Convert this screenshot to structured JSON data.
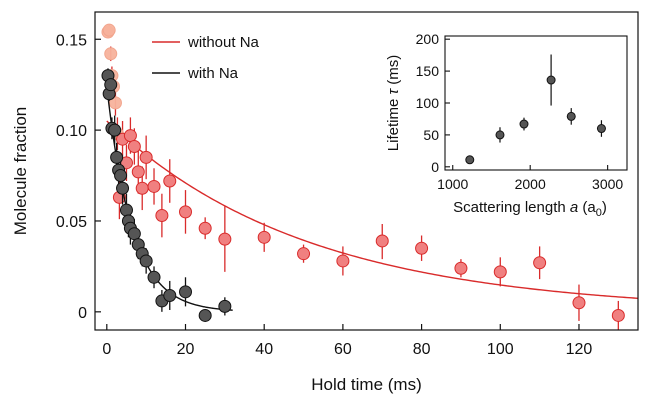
{
  "chart_data": [
    {
      "type": "scatter",
      "title": "",
      "xlabel": "Hold time (ms)",
      "ylabel": "Molecule fraction",
      "xlim": [
        -3,
        135
      ],
      "ylim": [
        -0.01,
        0.165
      ],
      "xticks": [
        0,
        20,
        40,
        60,
        80,
        100,
        120
      ],
      "yticks": [
        0,
        0.05,
        0.1,
        0.15
      ],
      "ytick_labels": [
        "0",
        "0.05",
        "0.10",
        "0.15"
      ],
      "grid": false,
      "legend": {
        "position": "top-left",
        "entries": [
          {
            "label": "without Na",
            "color": "#d92b2b"
          },
          {
            "label": "with Na",
            "color": "#111111"
          }
        ]
      },
      "series": [
        {
          "name": "without Na",
          "marker_color": "#f08080",
          "edge_color": "#d92b2b",
          "fit_color": "#d92b2b",
          "points": [
            [
              0.3,
              0.154,
              0.003
            ],
            [
              0.6,
              0.155,
              0.003
            ],
            [
              1.0,
              0.142,
              0.004
            ],
            [
              1.3,
              0.13,
              0.005
            ],
            [
              1.7,
              0.124,
              0.006
            ],
            [
              2.2,
              0.115,
              0.007
            ],
            [
              2.7,
              0.098,
              0.009
            ],
            [
              3.2,
              0.063,
              0.012
            ],
            [
              4.0,
              0.095,
              0.01
            ],
            [
              5.0,
              0.082,
              0.01
            ],
            [
              6.0,
              0.097,
              0.01
            ],
            [
              7.0,
              0.091,
              0.01
            ],
            [
              8.0,
              0.077,
              0.012
            ],
            [
              9.0,
              0.068,
              0.012
            ],
            [
              10.0,
              0.085,
              0.012
            ],
            [
              12.0,
              0.069,
              0.01
            ],
            [
              14.0,
              0.053,
              0.012
            ],
            [
              16.0,
              0.072,
              0.012
            ],
            [
              20.0,
              0.055,
              0.012
            ],
            [
              25.0,
              0.046,
              0.006
            ],
            [
              30.0,
              0.04,
              0.018
            ],
            [
              40.0,
              0.041,
              0.008
            ],
            [
              50.0,
              0.032,
              0.005
            ],
            [
              60.0,
              0.028,
              0.008
            ],
            [
              70.0,
              0.039,
              0.01
            ],
            [
              80.0,
              0.035,
              0.007
            ],
            [
              90.0,
              0.024,
              0.005
            ],
            [
              100.0,
              0.022,
              0.008
            ],
            [
              110.0,
              0.027,
              0.009
            ],
            [
              120.0,
              0.005,
              0.01
            ],
            [
              130.0,
              -0.002,
              0.008
            ]
          ],
          "fit": {
            "A": 0.105,
            "tau_ms": 51,
            "c": 0.0
          }
        },
        {
          "name": "with Na",
          "marker_color": "#555555",
          "edge_color": "#111111",
          "fit_color": "#111111",
          "points": [
            [
              0.3,
              0.13,
              0.004
            ],
            [
              0.6,
              0.12,
              0.004
            ],
            [
              1.0,
              0.125,
              0.005
            ],
            [
              1.3,
              0.101,
              0.006
            ],
            [
              2.0,
              0.1,
              0.008
            ],
            [
              2.5,
              0.085,
              0.008
            ],
            [
              3.0,
              0.078,
              0.008
            ],
            [
              3.5,
              0.075,
              0.008
            ],
            [
              4.0,
              0.068,
              0.009
            ],
            [
              5.0,
              0.056,
              0.009
            ],
            [
              5.5,
              0.05,
              0.009
            ],
            [
              6.0,
              0.046,
              0.009
            ],
            [
              7.0,
              0.043,
              0.008
            ],
            [
              8.0,
              0.037,
              0.008
            ],
            [
              9.0,
              0.032,
              0.007
            ],
            [
              10.0,
              0.028,
              0.007
            ],
            [
              12.0,
              0.019,
              0.006
            ],
            [
              14.0,
              0.006,
              0.006
            ],
            [
              16.0,
              0.009,
              0.008
            ],
            [
              20.0,
              0.011,
              0.008
            ],
            [
              25.0,
              -0.002,
              0.003
            ],
            [
              30.0,
              0.003,
              0.005
            ]
          ],
          "fit": {
            "A": 0.124,
            "tau_ms": 6.5,
            "c": 0.0,
            "xmax": 32
          }
        }
      ]
    },
    {
      "type": "scatter",
      "title": "",
      "xlabel": "Scattering length a (a0)",
      "ylabel": "Lifetime τ (ms)",
      "xlim": [
        900,
        3250
      ],
      "ylim": [
        -5,
        205
      ],
      "xticks": [
        1000,
        2000,
        3000
      ],
      "yticks": [
        0,
        50,
        100,
        150,
        200
      ],
      "marker_color": "#555555",
      "points": [
        [
          1220,
          11,
          2
        ],
        [
          1610,
          50,
          12
        ],
        [
          1920,
          67,
          10
        ],
        [
          2270,
          136,
          40
        ],
        [
          2530,
          79,
          13
        ],
        [
          2920,
          60,
          13
        ]
      ]
    }
  ],
  "inset": {
    "ylabel_main": "Lifetime ",
    "ylabel_sym": "τ",
    "ylabel_unit": " (ms)",
    "xlabel_main": "Scattering length ",
    "xlabel_sym": "a",
    "xlabel_open": " (a",
    "xlabel_sub": "0",
    "xlabel_close": ")"
  }
}
